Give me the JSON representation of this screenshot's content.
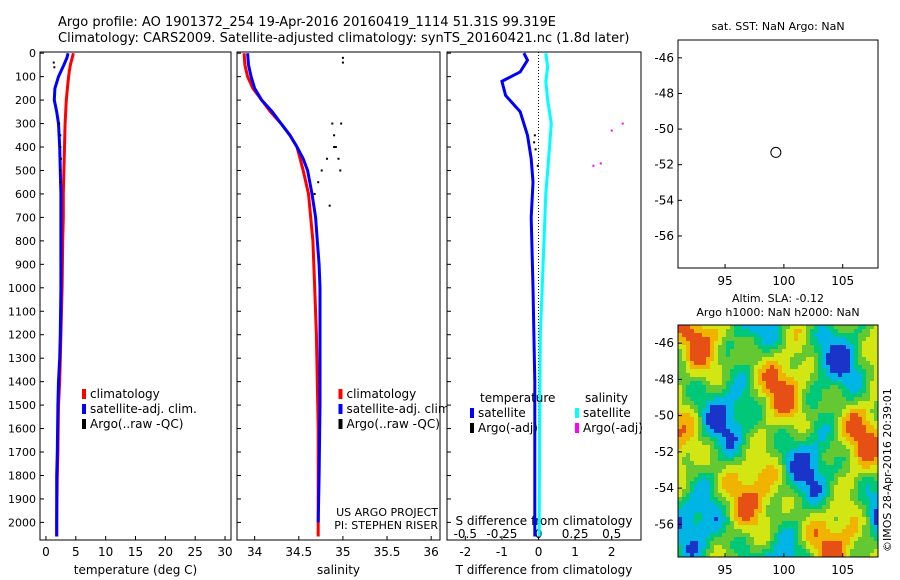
{
  "header": {
    "line1": "Argo profile: AO 1901372_254 19-Apr-2016 20160419_1114 51.31S 99.319E",
    "line2": "Climatology: CARS2009. Satellite-adjusted climatology: synTS_20160421.nc (1.8d later)"
  },
  "colors": {
    "climatology": "#ff0000",
    "satellite": "#0000ff",
    "argo": "#000000",
    "sat_salinity": "#00ffff",
    "argo_salinity": "#ff00ff"
  },
  "chart_data": [
    {
      "id": "temperature",
      "type": "line",
      "xlabel": "temperature (deg C)",
      "xlim": [
        -1,
        31
      ],
      "ylim": [
        2075,
        -5
      ],
      "xticks": [
        0,
        5,
        10,
        15,
        20,
        25,
        30
      ],
      "yticks": [
        0,
        100,
        200,
        300,
        400,
        500,
        600,
        700,
        800,
        900,
        1000,
        1100,
        1200,
        1300,
        1400,
        1500,
        1600,
        1700,
        1800,
        1900,
        2000
      ],
      "legend": [
        "climatology",
        "satellite-adj. clim.",
        "Argo(..raw -QC)"
      ],
      "series": [
        {
          "name": "climatology",
          "color": "#ff0000",
          "x": [
            4.6,
            4.4,
            4.1,
            3.9,
            3.7,
            3.4,
            3.3,
            3.2,
            3.1,
            3.0,
            2.9,
            2.9,
            2.8,
            2.7,
            2.5,
            2.3,
            2.1,
            2.0,
            1.9,
            1.85,
            1.8,
            1.8
          ],
          "y": [
            0,
            20,
            50,
            80,
            120,
            200,
            250,
            300,
            400,
            500,
            600,
            700,
            800,
            1000,
            1200,
            1400,
            1500,
            1700,
            1800,
            1900,
            2000,
            2060
          ]
        },
        {
          "name": "satellite-adj. clim.",
          "color": "#0000ff",
          "x": [
            3.7,
            3.5,
            3.0,
            2.1,
            1.5,
            1.4,
            1.8,
            2.1,
            2.3,
            2.4,
            2.5,
            2.5,
            2.5,
            2.4,
            2.3,
            2.1,
            2.0,
            1.9,
            1.8,
            1.8,
            1.8
          ],
          "y": [
            0,
            20,
            50,
            100,
            150,
            200,
            250,
            300,
            400,
            500,
            600,
            800,
            1000,
            1200,
            1300,
            1400,
            1500,
            1700,
            1800,
            1900,
            2060
          ]
        },
        {
          "name": "Argo(..raw -QC)",
          "color": "#000000",
          "x": [
            1.3,
            1.4,
            2.2,
            2.4,
            2.4,
            2.5,
            2.4,
            2.4
          ],
          "y": [
            40,
            60,
            300,
            350,
            400,
            450,
            500,
            550
          ]
        }
      ]
    },
    {
      "id": "salinity",
      "type": "line",
      "xlabel": "salinity",
      "xlim": [
        33.8,
        36.1
      ],
      "ylim": [
        2075,
        -5
      ],
      "xticks": [
        34,
        34.5,
        35,
        35.5,
        36
      ],
      "legend": [
        "climatology",
        "satellite-adj. clim.",
        "Argo(..raw -QC)"
      ],
      "credits": [
        "US ARGO PROJECT",
        "PI: STEPHEN RISER"
      ],
      "series": [
        {
          "name": "climatology",
          "color": "#ff0000",
          "x": [
            33.88,
            33.89,
            33.92,
            33.98,
            34.08,
            34.18,
            34.3,
            34.4,
            34.48,
            34.55,
            34.61,
            34.66,
            34.68,
            34.7,
            34.71,
            34.72,
            34.72,
            34.72
          ],
          "y": [
            0,
            50,
            100,
            150,
            200,
            250,
            300,
            350,
            400,
            500,
            600,
            800,
            1000,
            1200,
            1400,
            1600,
            1800,
            2060
          ]
        },
        {
          "name": "satellite-adj. clim.",
          "color": "#0000ff",
          "x": [
            33.92,
            33.93,
            33.96,
            34.0,
            34.08,
            34.2,
            34.3,
            34.4,
            34.48,
            34.55,
            34.6,
            34.65,
            34.69,
            34.71,
            34.73,
            34.74,
            34.74,
            34.74,
            34.73,
            34.72
          ],
          "y": [
            0,
            50,
            100,
            150,
            200,
            250,
            300,
            350,
            400,
            450,
            500,
            600,
            700,
            800,
            900,
            1000,
            1200,
            1500,
            1800,
            2000
          ]
        },
        {
          "name": "Argo(..raw -QC)",
          "color": "#000000",
          "x": [
            35.0,
            35.0,
            34.98,
            34.9,
            34.82,
            34.76,
            34.72,
            34.68,
            34.85,
            34.88,
            34.9,
            34.92,
            34.95,
            34.97
          ],
          "y": [
            20,
            40,
            300,
            400,
            450,
            500,
            550,
            600,
            650,
            300,
            350,
            400,
            450,
            500
          ]
        }
      ]
    },
    {
      "id": "difference",
      "type": "line",
      "xlabel": "T difference from climatology",
      "xlabel_top": "S difference from climatology",
      "xlim": [
        -2.5,
        2.8
      ],
      "ylim": [
        2075,
        -5
      ],
      "xticks": [
        -2,
        -1,
        0,
        1,
        2
      ],
      "s_ticks": [
        "-0.5",
        "-0.25",
        "0",
        "0.25",
        "0.5"
      ],
      "legend_groups": [
        "temperature",
        "salinity"
      ],
      "legend": [
        "satellite",
        "Argo(-adj)",
        "satellite",
        "Argo(-adj)"
      ],
      "series": [
        {
          "name": "temperature satellite",
          "color": "#0000ff",
          "x": [
            -0.4,
            -0.3,
            -0.5,
            -1.0,
            -0.9,
            -0.5,
            -0.3,
            -0.2,
            -0.15,
            -0.2,
            -0.15,
            -0.1,
            -0.1,
            -0.1
          ],
          "y": [
            0,
            30,
            80,
            120,
            180,
            250,
            350,
            450,
            550,
            700,
            1000,
            1400,
            1800,
            2060
          ]
        },
        {
          "name": "salinity satellite",
          "color": "#00ffff",
          "x": [
            0.2,
            0.25,
            0.2,
            0.25,
            0.35,
            0.3,
            0.25,
            0.2,
            0.15,
            0.1,
            0.05,
            0.03,
            0.02
          ],
          "y": [
            0,
            60,
            120,
            200,
            300,
            400,
            500,
            600,
            800,
            1000,
            1200,
            1600,
            2060
          ]
        },
        {
          "name": "temperature Argo(-adj)",
          "color": "#000000",
          "x": [
            -0.1,
            -0.12,
            -0.08,
            -0.02
          ],
          "y": [
            350,
            380,
            410,
            480
          ]
        },
        {
          "name": "salinity Argo(-adj)",
          "color": "#ff00ff",
          "x": [
            1.5,
            1.7,
            2.3,
            2.0
          ],
          "y": [
            480,
            470,
            300,
            330
          ]
        }
      ]
    },
    {
      "id": "sst-map",
      "type": "scatter",
      "title": "sat. SST: NaN Argo: NaN",
      "xlim": [
        91,
        108
      ],
      "ylim": [
        -57.8,
        -45
      ],
      "xticks": [
        95,
        100,
        105
      ],
      "yticks": [
        -46,
        -48,
        -50,
        -52,
        -54,
        -56
      ],
      "points": [
        {
          "x": 99.319,
          "y": -51.31
        }
      ]
    },
    {
      "id": "sla-map",
      "type": "heatmap",
      "title_line1": "Altim. SLA: -0.12",
      "title_line2": "Argo h1000: NaN h2000: NaN",
      "xlim": [
        91,
        108
      ],
      "ylim": [
        -57.8,
        -45
      ],
      "xticks": [
        95,
        100,
        105
      ],
      "yticks": [
        -46,
        -48,
        -50,
        -52,
        -54,
        -56
      ],
      "colorscale": [
        "#1a33c8",
        "#00b4e6",
        "#00c878",
        "#64c832",
        "#d2e614",
        "#f0b400",
        "#e65014"
      ]
    }
  ],
  "watermark": "©IMOS 28-Apr-2016 20:39:01"
}
